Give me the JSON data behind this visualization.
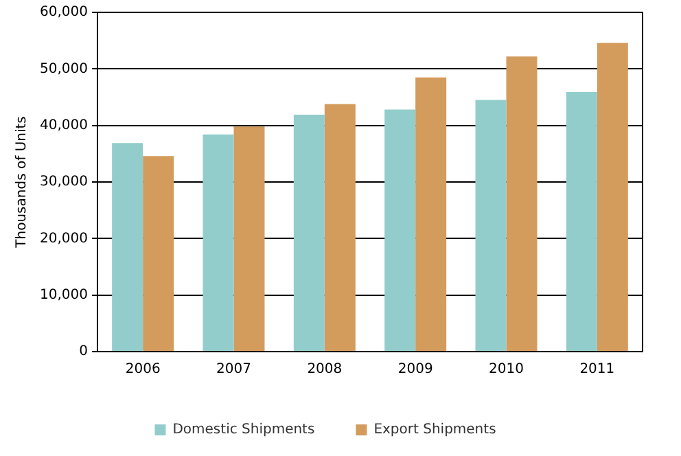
{
  "chart_data": {
    "type": "bar",
    "ylabel": "Thousands of Units",
    "categories": [
      "2006",
      "2007",
      "2008",
      "2009",
      "2010",
      "2011"
    ],
    "series": [
      {
        "name": "Domestic Shipments",
        "color": "#93cdcb",
        "values": [
          36900,
          38400,
          41900,
          42800,
          44500,
          45900
        ]
      },
      {
        "name": "Export Shipments",
        "color": "#d39b5c",
        "values": [
          34600,
          39800,
          43800,
          48500,
          52200,
          54600
        ]
      }
    ],
    "ylim": [
      0,
      60000
    ],
    "yticks": [
      {
        "value": 0,
        "label": "0"
      },
      {
        "value": 10000,
        "label": "10,000"
      },
      {
        "value": 20000,
        "label": "20,000"
      },
      {
        "value": 30000,
        "label": "30,000"
      },
      {
        "value": 40000,
        "label": "40,000"
      },
      {
        "value": 50000,
        "label": "50,000"
      },
      {
        "value": 60000,
        "label": "60,000"
      }
    ],
    "grid": "y",
    "legend": "bottom"
  }
}
